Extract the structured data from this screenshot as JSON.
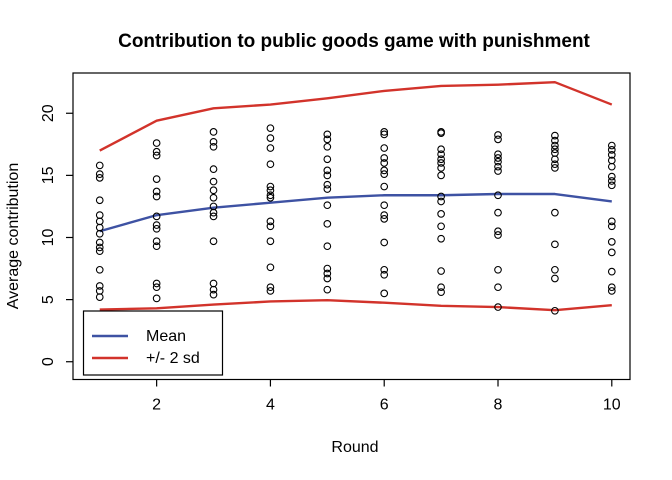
{
  "colors": {
    "mean": "#3e52a3",
    "sd": "#d2332b",
    "points": "#000000",
    "axis": "#000000",
    "background": "#ffffff"
  },
  "legend": {
    "items": [
      {
        "label": "Mean",
        "color": "#3e52a3"
      },
      {
        "label": "+/- 2 sd",
        "color": "#d2332b"
      }
    ]
  },
  "chart_data": {
    "type": "scatter",
    "title": "Contribution to public goods game with punishment",
    "xlabel": "Round",
    "ylabel": "Average contribution",
    "x_ticks": [
      2,
      4,
      6,
      8,
      10
    ],
    "y_ticks": [
      0,
      5,
      10,
      15,
      20
    ],
    "xlim": [
      0.53,
      10.32
    ],
    "ylim": [
      -1.43,
      23.24
    ],
    "grid": false,
    "legend_position": "bottom-left",
    "rounds": [
      1,
      2,
      3,
      4,
      5,
      6,
      7,
      8,
      9,
      10
    ],
    "series": [
      {
        "name": "Mean",
        "role": "mean",
        "color": "#3e52a3",
        "values": [
          10.5,
          11.8,
          12.4,
          12.8,
          13.2,
          13.4,
          13.4,
          13.5,
          13.5,
          12.9
        ]
      },
      {
        "name": "+2 sd",
        "role": "upper",
        "color": "#d2332b",
        "values": [
          17.0,
          19.4,
          20.4,
          20.7,
          21.2,
          21.8,
          22.2,
          22.3,
          22.5,
          20.7
        ]
      },
      {
        "name": "-2 sd",
        "role": "lower",
        "color": "#d2332b",
        "values": [
          4.2,
          4.3,
          4.6,
          4.85,
          4.95,
          4.75,
          4.5,
          4.4,
          4.15,
          4.55
        ]
      }
    ],
    "scatter": [
      {
        "round": 1,
        "values": [
          15.8,
          15.1,
          14.8,
          13.0,
          11.8,
          11.3,
          10.8,
          10.3,
          9.6,
          9.2,
          8.9,
          7.4,
          6.1,
          5.7,
          5.2
        ]
      },
      {
        "round": 2,
        "values": [
          17.6,
          16.9,
          16.6,
          14.7,
          13.7,
          13.3,
          11.7,
          11.0,
          10.7,
          9.7,
          9.3,
          6.3,
          6.0,
          5.1
        ]
      },
      {
        "round": 3,
        "values": [
          18.5,
          17.7,
          17.3,
          15.5,
          14.5,
          13.8,
          13.2,
          12.5,
          12.0,
          11.7,
          9.7,
          6.3,
          5.8,
          5.4
        ]
      },
      {
        "round": 4,
        "values": [
          18.8,
          18.0,
          17.2,
          15.9,
          14.1,
          13.8,
          13.4,
          13.2,
          11.3,
          10.9,
          9.7,
          7.6,
          6.0,
          5.7
        ]
      },
      {
        "round": 5,
        "values": [
          18.3,
          17.9,
          17.3,
          16.3,
          15.4,
          15.0,
          14.25,
          13.9,
          12.6,
          11.1,
          9.3,
          7.5,
          7.1,
          6.7,
          5.8
        ]
      },
      {
        "round": 6,
        "values": [
          18.5,
          18.3,
          17.2,
          16.4,
          16.0,
          15.4,
          15.1,
          14.1,
          12.6,
          11.8,
          11.5,
          9.6,
          7.4,
          7.0,
          5.5
        ]
      },
      {
        "round": 7,
        "values": [
          18.5,
          18.4,
          17.1,
          16.7,
          16.3,
          16.0,
          15.6,
          15.0,
          13.3,
          12.9,
          11.9,
          10.9,
          9.9,
          7.3,
          6.0,
          5.6
        ]
      },
      {
        "round": 8,
        "values": [
          18.25,
          17.9,
          16.7,
          16.4,
          16.1,
          15.7,
          15.35,
          13.4,
          12.0,
          10.5,
          10.2,
          7.4,
          6.0,
          4.4
        ]
      },
      {
        "round": 9,
        "values": [
          18.2,
          17.8,
          17.4,
          17.1,
          16.8,
          16.3,
          15.9,
          15.6,
          12.0,
          9.45,
          7.4,
          6.7,
          4.1
        ]
      },
      {
        "round": 10,
        "values": [
          17.4,
          17.05,
          16.65,
          16.2,
          15.7,
          14.9,
          14.55,
          14.2,
          11.3,
          10.9,
          9.65,
          8.8,
          7.25,
          6.0,
          5.7
        ]
      }
    ]
  }
}
